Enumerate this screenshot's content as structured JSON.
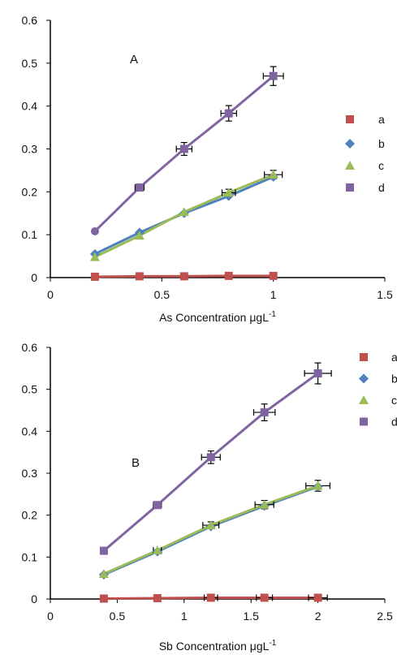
{
  "charts": [
    {
      "type": "line",
      "panel_label": "A",
      "xlabel": "As Concentration μgL",
      "xlabel_sup": "-1",
      "xlim": [
        0,
        1.5
      ],
      "ylim": [
        0,
        0.6
      ],
      "xticks": [
        "0",
        "0.5",
        "1",
        "1.5"
      ],
      "yticks": [
        "0",
        "0.1",
        "0.2",
        "0.3",
        "0.4",
        "0.5",
        "0.6"
      ],
      "legend_placement": "right",
      "series": [
        {
          "name": "a",
          "color": "#c0504d",
          "marker": "square",
          "x": [
            0.2,
            0.4,
            0.6,
            0.8,
            1.0
          ],
          "y": [
            0.002,
            0.003,
            0.003,
            0.004,
            0.004
          ],
          "xerr": [
            0,
            0,
            0,
            0,
            0
          ],
          "yerr": [
            0,
            0,
            0,
            0,
            0
          ]
        },
        {
          "name": "b",
          "color": "#4f81bd",
          "marker": "diamond",
          "x": [
            0.2,
            0.4,
            0.6,
            0.8,
            1.0
          ],
          "y": [
            0.055,
            0.105,
            0.15,
            0.19,
            0.235
          ],
          "xerr": [
            0,
            0,
            0,
            0,
            0
          ],
          "yerr": [
            0,
            0,
            0,
            0,
            0
          ]
        },
        {
          "name": "c",
          "color": "#9bbb59",
          "marker": "triangle",
          "x": [
            0.2,
            0.4,
            0.6,
            0.8,
            1.0
          ],
          "y": [
            0.048,
            0.098,
            0.153,
            0.198,
            0.24
          ],
          "xerr": [
            0,
            0,
            0,
            0.03,
            0.04
          ],
          "yerr": [
            0,
            0,
            0,
            0.008,
            0.01
          ]
        },
        {
          "name": "d",
          "color": "#8064a2",
          "marker": "square",
          "x": [
            0.2,
            0.4,
            0.6,
            0.8,
            1.0
          ],
          "y": [
            0.108,
            0.21,
            0.3,
            0.383,
            0.47
          ],
          "xerr": [
            0,
            0.02,
            0.035,
            0.035,
            0.045
          ],
          "yerr": [
            0,
            0.005,
            0.015,
            0.018,
            0.022
          ]
        }
      ]
    },
    {
      "type": "line",
      "panel_label": "B",
      "xlabel": "Sb Concentration μgL",
      "xlabel_sup": "-1",
      "xlim": [
        0,
        2.5
      ],
      "ylim": [
        0,
        0.6
      ],
      "xticks": [
        "0",
        "0.5",
        "1",
        "1.5",
        "2",
        "2.5"
      ],
      "yticks": [
        "0",
        "0.1",
        "0.2",
        "0.3",
        "0.4",
        "0.5",
        "0.6"
      ],
      "legend_placement": "top-right",
      "series": [
        {
          "name": "a",
          "color": "#c0504d",
          "marker": "square",
          "x": [
            0.4,
            0.8,
            1.2,
            1.6,
            2.0
          ],
          "y": [
            0.001,
            0.002,
            0.003,
            0.003,
            0.003
          ],
          "xerr": [
            0,
            0,
            0.05,
            0.06,
            0.07
          ],
          "yerr": [
            0,
            0,
            0,
            0,
            0
          ]
        },
        {
          "name": "b",
          "color": "#4f81bd",
          "marker": "diamond",
          "x": [
            0.4,
            0.8,
            1.2,
            1.6,
            2.0
          ],
          "y": [
            0.058,
            0.113,
            0.173,
            0.222,
            0.268
          ],
          "xerr": [
            0,
            0,
            0,
            0,
            0
          ],
          "yerr": [
            0,
            0,
            0,
            0,
            0
          ]
        },
        {
          "name": "c",
          "color": "#9bbb59",
          "marker": "triangle",
          "x": [
            0.4,
            0.8,
            1.2,
            1.6,
            2.0
          ],
          "y": [
            0.06,
            0.116,
            0.176,
            0.225,
            0.27
          ],
          "xerr": [
            0,
            0.03,
            0.06,
            0.07,
            0.09
          ],
          "yerr": [
            0,
            0,
            0.008,
            0.01,
            0.013
          ]
        },
        {
          "name": "d",
          "color": "#8064a2",
          "marker": "square",
          "x": [
            0.4,
            0.8,
            1.2,
            1.6,
            2.0
          ],
          "y": [
            0.115,
            0.224,
            0.338,
            0.445,
            0.538
          ],
          "xerr": [
            0,
            0.03,
            0.07,
            0.08,
            0.1
          ],
          "yerr": [
            0,
            0,
            0.015,
            0.02,
            0.025
          ]
        }
      ]
    }
  ]
}
